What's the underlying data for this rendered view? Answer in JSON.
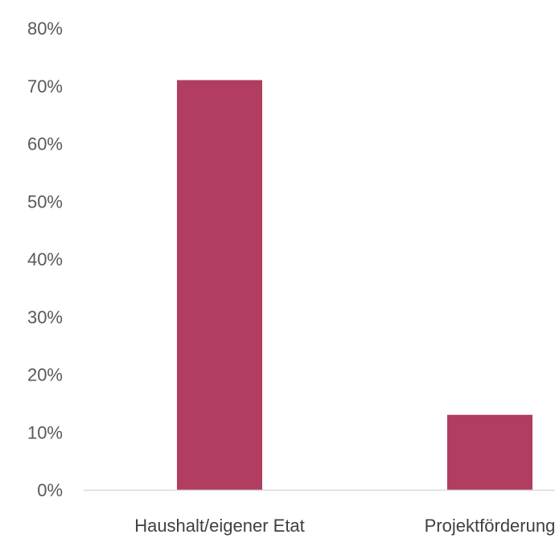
{
  "chart_data": {
    "type": "bar",
    "title": "",
    "xlabel": "",
    "ylabel": "",
    "ylim": [
      0,
      80
    ],
    "yticks": [
      0,
      10,
      20,
      30,
      40,
      50,
      60,
      70,
      80
    ],
    "ytick_suffix": "%",
    "categories": [
      "Haushalt/eigener Etat",
      "Projektförderung"
    ],
    "values": [
      71,
      13
    ],
    "grid": false,
    "legend": "none",
    "colors": {
      "bar": "#b13d61",
      "axis": "#d9d9d9",
      "tick_text": "#595959",
      "category_text": "#404040"
    }
  }
}
